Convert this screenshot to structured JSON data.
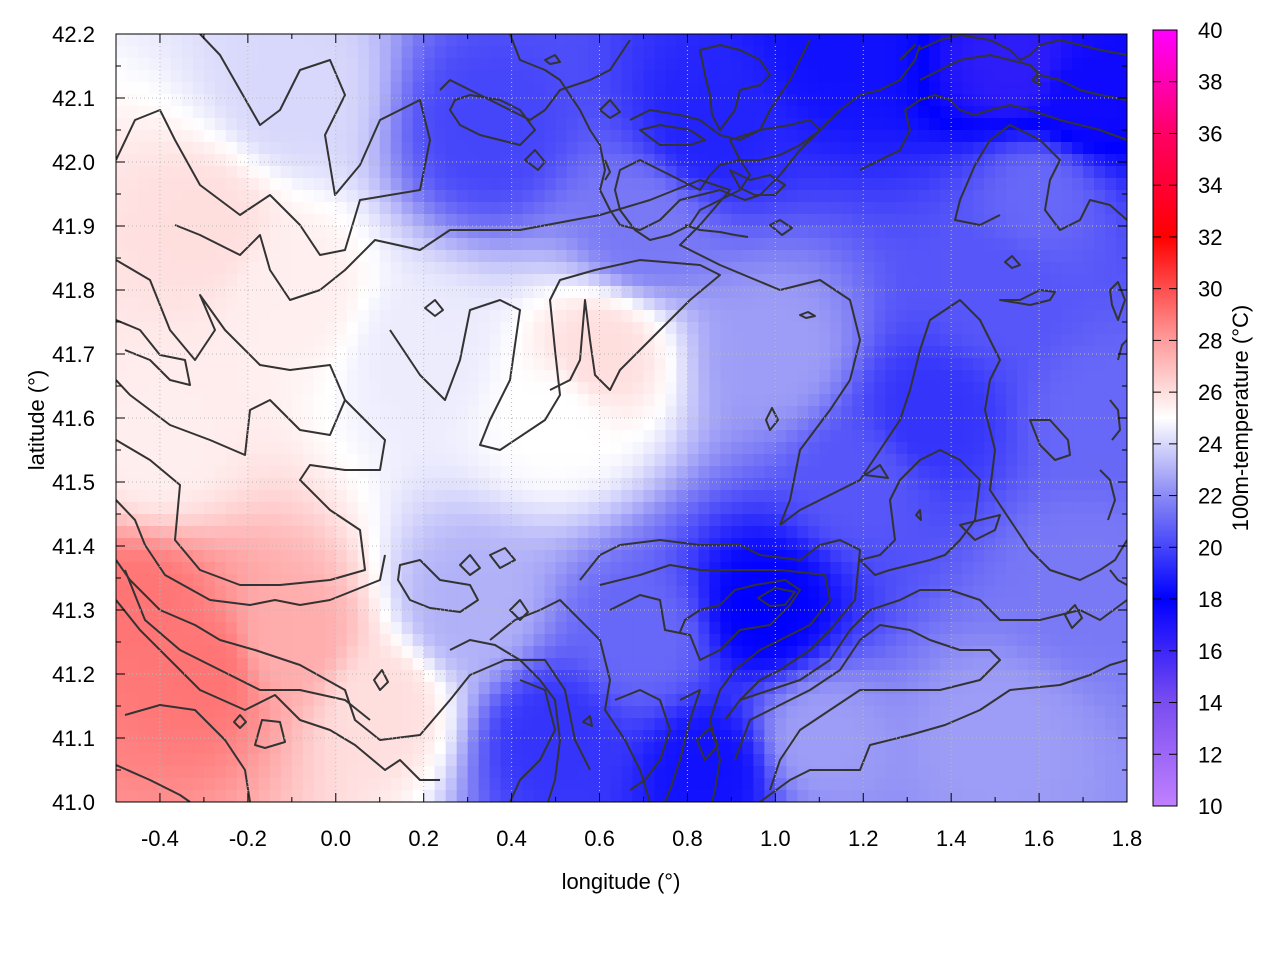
{
  "chart_data": {
    "type": "heatmap",
    "title": "",
    "xlabel": "longitude (°)",
    "ylabel": "latitude (°)",
    "colorbar_label": "100m-temperature (°C)",
    "xlim": [
      -0.5,
      1.8
    ],
    "ylim": [
      41.0,
      42.2
    ],
    "xticks": [
      -0.4,
      -0.2,
      0.0,
      0.2,
      0.4,
      0.6,
      0.8,
      1.0,
      1.2,
      1.4,
      1.6,
      1.8
    ],
    "yticks": [
      41.0,
      41.1,
      41.2,
      41.3,
      41.4,
      41.5,
      41.6,
      41.7,
      41.8,
      41.9,
      42.0,
      42.1,
      42.2
    ],
    "colorbar_range": [
      10,
      40
    ],
    "colorbar_ticks": [
      10,
      12,
      14,
      16,
      18,
      20,
      22,
      24,
      26,
      28,
      30,
      32,
      34,
      36,
      38,
      40
    ],
    "grid": true,
    "colormap": [
      {
        "v": 10,
        "color": "#c080ff"
      },
      {
        "v": 14,
        "color": "#7a4df0"
      },
      {
        "v": 18,
        "color": "#0000ff"
      },
      {
        "v": 22,
        "color": "#8a8af5"
      },
      {
        "v": 25,
        "color": "#ffffff"
      },
      {
        "v": 28,
        "color": "#ff9c9c"
      },
      {
        "v": 32,
        "color": "#ff0000"
      },
      {
        "v": 36,
        "color": "#ff0066"
      },
      {
        "v": 40,
        "color": "#ff00ff"
      }
    ],
    "field_samples": [
      {
        "lon": -0.45,
        "lat": 41.3,
        "value": 29
      },
      {
        "lon": -0.3,
        "lat": 41.2,
        "value": 29
      },
      {
        "lon": -0.1,
        "lat": 41.25,
        "value": 27.5
      },
      {
        "lon": 0.1,
        "lat": 41.15,
        "value": 26
      },
      {
        "lon": -0.4,
        "lat": 41.55,
        "value": 25.5
      },
      {
        "lon": -0.3,
        "lat": 41.9,
        "value": 26
      },
      {
        "lon": -0.1,
        "lat": 41.8,
        "value": 25.5
      },
      {
        "lon": 0.2,
        "lat": 41.7,
        "value": 24.5
      },
      {
        "lon": 0.6,
        "lat": 41.7,
        "value": 26
      },
      {
        "lon": 0.5,
        "lat": 41.6,
        "value": 25
      },
      {
        "lon": -0.1,
        "lat": 42.1,
        "value": 24
      },
      {
        "lon": 0.3,
        "lat": 41.3,
        "value": 23
      },
      {
        "lon": 0.5,
        "lat": 41.1,
        "value": 19.5
      },
      {
        "lon": 0.7,
        "lat": 41.25,
        "value": 21
      },
      {
        "lon": 0.85,
        "lat": 41.05,
        "value": 18.5
      },
      {
        "lon": 0.98,
        "lat": 41.3,
        "value": 18
      },
      {
        "lon": 1.2,
        "lat": 41.5,
        "value": 20.5
      },
      {
        "lon": 1.35,
        "lat": 41.6,
        "value": 19.5
      },
      {
        "lon": 1.5,
        "lat": 41.8,
        "value": 20.5
      },
      {
        "lon": 1.6,
        "lat": 41.95,
        "value": 21
      },
      {
        "lon": 1.15,
        "lat": 42.18,
        "value": 18.5
      },
      {
        "lon": 1.55,
        "lat": 42.15,
        "value": 16.5
      },
      {
        "lon": 1.7,
        "lat": 42.1,
        "value": 17.5
      },
      {
        "lon": 0.85,
        "lat": 42.05,
        "value": 19
      },
      {
        "lon": 0.35,
        "lat": 42.05,
        "value": 20
      },
      {
        "lon": 0.7,
        "lat": 41.9,
        "value": 21.5
      },
      {
        "lon": 1.0,
        "lat": 41.7,
        "value": 22.5
      },
      {
        "lon": 1.1,
        "lat": 41.1,
        "value": 22.5
      },
      {
        "lon": 1.5,
        "lat": 41.1,
        "value": 22.5
      },
      {
        "lon": 1.7,
        "lat": 41.35,
        "value": 21.5
      },
      {
        "lon": 1.75,
        "lat": 41.6,
        "value": 21
      }
    ]
  }
}
